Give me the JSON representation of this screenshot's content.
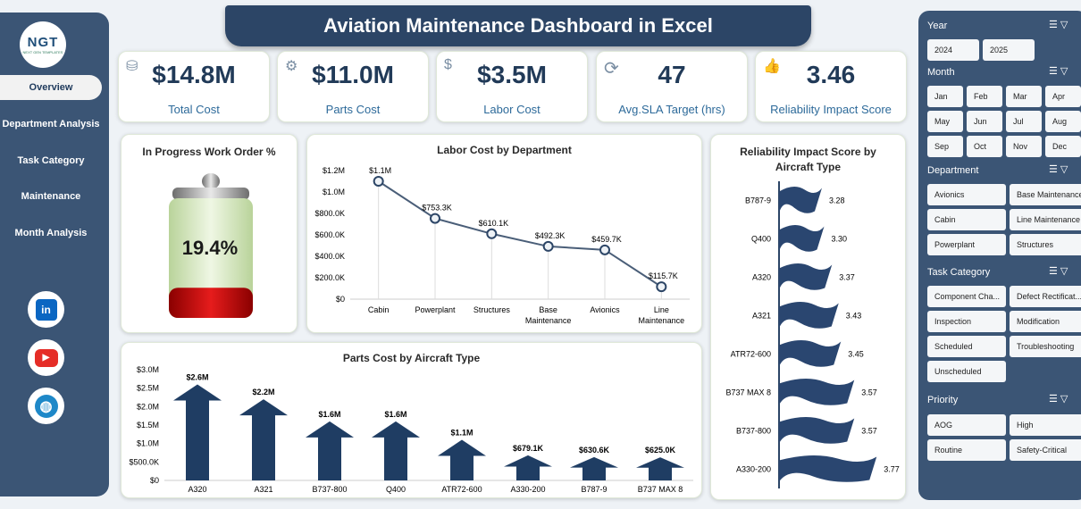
{
  "app": {
    "title": "Aviation Maintenance Dashboard in Excel"
  },
  "logo": {
    "text": "NGT",
    "subtext": "NEXT GEN TEMPLATES"
  },
  "nav": [
    "Overview",
    "Department Analysis",
    "Task Category",
    "Maintenance",
    "Month Analysis"
  ],
  "social": [
    {
      "name": "linkedin-icon",
      "glyph": "in",
      "color": "#0a66c2"
    },
    {
      "name": "youtube-icon",
      "glyph": "▶",
      "color": "#e52d27"
    },
    {
      "name": "globe-icon",
      "glyph": "◍",
      "color": "#1e88c8"
    }
  ],
  "kpis": [
    {
      "value": "$14.8M",
      "label": "Total Cost",
      "icon": "coins-icon"
    },
    {
      "value": "$11.0M",
      "label": "Parts Cost",
      "icon": "parts-icon"
    },
    {
      "value": "$3.5M",
      "label": "Labor Cost",
      "icon": "money-bag-icon"
    },
    {
      "value": "47",
      "label": "Avg.SLA Target (hrs)",
      "icon": "refresh-clock-icon"
    },
    {
      "value": "3.46",
      "label": "Reliability Impact Score",
      "icon": "thumbs-up-icon"
    }
  ],
  "battery": {
    "title": "In Progress Work Order %",
    "value_text": "19.4%",
    "value": 0.194
  },
  "labor_chart": {
    "title": "Labor Cost by Department",
    "categories": [
      "Cabin",
      "Powerplant",
      "Structures",
      "Base Maintenance",
      "Avionics",
      "Line Maintenance"
    ],
    "values": [
      1100000,
      753300,
      610100,
      492300,
      459700,
      115700
    ],
    "labels": [
      "$1.1M",
      "$753.3K",
      "$610.1K",
      "$492.3K",
      "$459.7K",
      "$115.7K"
    ],
    "yticks": [
      "$0",
      "$200.0K",
      "$400.0K",
      "$600.0K",
      "$800.0K",
      "$1.0M",
      "$1.2M"
    ],
    "ymax": 1200000
  },
  "parts_chart": {
    "title": "Parts Cost by Aircraft Type",
    "categories": [
      "A320",
      "A321",
      "B737-800",
      "Q400",
      "ATR72-600",
      "A330-200",
      "B787-9",
      "B737 MAX 8"
    ],
    "values": [
      2600000,
      2200000,
      1600000,
      1600000,
      1100000,
      679100,
      630600,
      625000
    ],
    "labels": [
      "$2.6M",
      "$2.2M",
      "$1.6M",
      "$1.6M",
      "$1.1M",
      "$679.1K",
      "$630.6K",
      "$625.0K"
    ],
    "yticks": [
      "$0",
      "$500.0K",
      "$1.0M",
      "$1.5M",
      "$2.0M",
      "$2.5M",
      "$3.0M"
    ],
    "ymax": 3000000
  },
  "reliability_chart": {
    "title_line1": "Reliability Impact Score by",
    "title_line2": "Aircraft Type",
    "categories": [
      "B787-9",
      "Q400",
      "A320",
      "A321",
      "ATR72-600",
      "B737 MAX 8",
      "B737-800",
      "A330-200"
    ],
    "values": [
      3.28,
      3.3,
      3.37,
      3.43,
      3.45,
      3.57,
      3.57,
      3.77
    ],
    "labels": [
      "3.28",
      "3.30",
      "3.37",
      "3.43",
      "3.45",
      "3.57",
      "3.57",
      "3.77"
    ]
  },
  "chart_data": [
    {
      "type": "line",
      "title": "Labor Cost by Department",
      "categories": [
        "Cabin",
        "Powerplant",
        "Structures",
        "Base Maintenance",
        "Avionics",
        "Line Maintenance"
      ],
      "values": [
        1100000,
        753300,
        610100,
        492300,
        459700,
        115700
      ],
      "ylim": [
        0,
        1200000
      ]
    },
    {
      "type": "bar",
      "title": "Parts Cost by Aircraft Type",
      "categories": [
        "A320",
        "A321",
        "B737-800",
        "Q400",
        "ATR72-600",
        "A330-200",
        "B787-9",
        "B737 MAX 8"
      ],
      "values": [
        2600000,
        2200000,
        1600000,
        1600000,
        1100000,
        679100,
        630600,
        625000
      ],
      "ylim": [
        0,
        3000000
      ]
    },
    {
      "type": "bar",
      "title": "Reliability Impact Score by Aircraft Type",
      "categories": [
        "B787-9",
        "Q400",
        "A320",
        "A321",
        "ATR72-600",
        "B737 MAX 8",
        "B737-800",
        "A330-200"
      ],
      "values": [
        3.28,
        3.3,
        3.37,
        3.43,
        3.45,
        3.57,
        3.57,
        3.77
      ]
    }
  ],
  "slicers": {
    "year": {
      "label": "Year",
      "items": [
        "2024",
        "2025"
      ]
    },
    "month": {
      "label": "Month",
      "items": [
        "Jan",
        "Feb",
        "Mar",
        "Apr",
        "May",
        "Jun",
        "Jul",
        "Aug",
        "Sep",
        "Oct",
        "Nov",
        "Dec"
      ]
    },
    "department": {
      "label": "Department",
      "items": [
        "Avionics",
        "Base Maintenance",
        "Cabin",
        "Line Maintenance",
        "Powerplant",
        "Structures"
      ]
    },
    "task": {
      "label": "Task Category",
      "items": [
        "Component Cha...",
        "Defect Rectificat...",
        "Inspection",
        "Modification",
        "Scheduled",
        "Troubleshooting",
        "Unscheduled"
      ]
    },
    "priority": {
      "label": "Priority",
      "items": [
        "AOG",
        "High",
        "Routine",
        "Safety-Critical"
      ]
    }
  },
  "colors": {
    "navy": "#2c4566",
    "panel": "#3b5575",
    "bar": "#1f3d63",
    "battery_red": "#c00000"
  }
}
